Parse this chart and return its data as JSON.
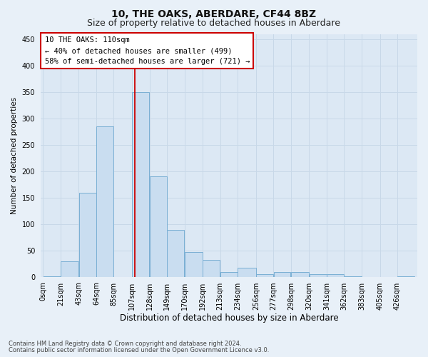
{
  "title": "10, THE OAKS, ABERDARE, CF44 8BZ",
  "subtitle": "Size of property relative to detached houses in Aberdare",
  "xlabel": "Distribution of detached houses by size in Aberdare",
  "ylabel": "Number of detached properties",
  "footnote1": "Contains HM Land Registry data © Crown copyright and database right 2024.",
  "footnote2": "Contains public sector information licensed under the Open Government Licence v3.0.",
  "bin_edges": [
    0,
    21,
    43,
    64,
    85,
    107,
    128,
    149,
    170,
    192,
    213,
    234,
    256,
    277,
    298,
    320,
    341,
    362,
    383,
    405,
    426,
    447
  ],
  "bar_heights": [
    2,
    30,
    160,
    285,
    0,
    350,
    190,
    90,
    48,
    32,
    10,
    18,
    5,
    10,
    10,
    5,
    5,
    2,
    0,
    0,
    2
  ],
  "bar_color": "#c9ddf0",
  "bar_edge_color": "#7aafd4",
  "xlim": [
    -3,
    450
  ],
  "ylim": [
    0,
    460
  ],
  "yticks": [
    0,
    50,
    100,
    150,
    200,
    250,
    300,
    350,
    400,
    450
  ],
  "xtick_labels": [
    "0sqm",
    "21sqm",
    "43sqm",
    "64sqm",
    "85sqm",
    "107sqm",
    "128sqm",
    "149sqm",
    "170sqm",
    "192sqm",
    "213sqm",
    "234sqm",
    "256sqm",
    "277sqm",
    "298sqm",
    "320sqm",
    "341sqm",
    "362sqm",
    "383sqm",
    "405sqm",
    "426sqm"
  ],
  "xtick_positions": [
    0,
    21,
    43,
    64,
    85,
    107,
    128,
    149,
    170,
    192,
    213,
    234,
    256,
    277,
    298,
    320,
    341,
    362,
    383,
    405,
    426
  ],
  "red_line_x": 110,
  "annotation_text": "10 THE OAKS: 110sqm\n← 40% of detached houses are smaller (499)\n58% of semi-detached houses are larger (721) →",
  "grid_color": "#c8d8e8",
  "fig_bg_color": "#e8f0f8",
  "ax_bg_color": "#dce8f4",
  "title_fontsize": 10,
  "subtitle_fontsize": 9,
  "annot_fontsize": 7.5,
  "ylabel_fontsize": 7.5,
  "xlabel_fontsize": 8.5,
  "tick_fontsize": 7,
  "footnote_fontsize": 6
}
